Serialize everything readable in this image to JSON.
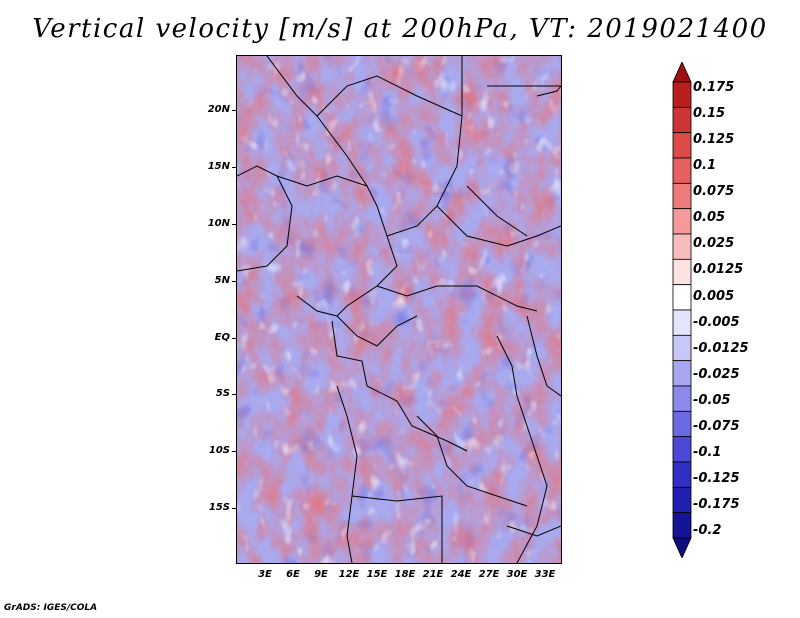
{
  "title": "Vertical velocity [m/s] at 200hPa, VT: 2019021400",
  "credit": "GrADS: IGES/COLA",
  "map": {
    "lat_labels": [
      "20N",
      "15N",
      "10N",
      "5N",
      "EQ",
      "5S",
      "10S",
      "15S"
    ],
    "lon_labels": [
      "3E",
      "6E",
      "9E",
      "12E",
      "15E",
      "18E",
      "21E",
      "24E",
      "27E",
      "30E",
      "33E"
    ]
  },
  "colorbar": {
    "labels": [
      "0.175",
      "0.15",
      "0.125",
      "0.1",
      "0.075",
      "0.05",
      "0.025",
      "0.0125",
      "0.005",
      "-0.005",
      "-0.0125",
      "-0.025",
      "-0.05",
      "-0.075",
      "-0.1",
      "-0.125",
      "-0.175",
      "-0.2"
    ],
    "colors": [
      "#a01010",
      "#b82020",
      "#cc3535",
      "#dc4a4a",
      "#e66060",
      "#ee7a7a",
      "#f49a9a",
      "#f9bcbc",
      "#fde2e2",
      "#ffffff",
      "#e4e4fc",
      "#c8c8f8",
      "#a8a8f2",
      "#8a8aec",
      "#6a6ae2",
      "#4a4ad6",
      "#3030c4",
      "#2020b0",
      "#141496",
      "#0c0c80"
    ]
  }
}
